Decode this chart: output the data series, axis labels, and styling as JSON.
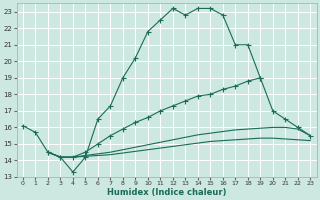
{
  "xlabel": "Humidex (Indice chaleur)",
  "bg_color": "#cce8e0",
  "grid_color": "#ffffff",
  "line_color": "#1a6b5a",
  "xlim": [
    -0.5,
    23.5
  ],
  "ylim": [
    13,
    23.5
  ],
  "yticks": [
    13,
    14,
    15,
    16,
    17,
    18,
    19,
    20,
    21,
    22,
    23
  ],
  "xticks": [
    0,
    1,
    2,
    3,
    4,
    5,
    6,
    7,
    8,
    9,
    10,
    11,
    12,
    13,
    14,
    15,
    16,
    17,
    18,
    19,
    20,
    21,
    22,
    23
  ],
  "line1_x": [
    0,
    1,
    2,
    3,
    4,
    5,
    6,
    7,
    8,
    9,
    10,
    11,
    12,
    13,
    14,
    15,
    16,
    17,
    18,
    19
  ],
  "line1_y": [
    16.1,
    15.7,
    14.5,
    14.2,
    13.3,
    14.2,
    16.5,
    17.3,
    19.0,
    20.2,
    21.8,
    22.5,
    23.2,
    22.8,
    23.2,
    23.2,
    22.8,
    21.0,
    21.0,
    19.0
  ],
  "line2_x": [
    2,
    3,
    4,
    5,
    6,
    7,
    8,
    9,
    10,
    11,
    12,
    13,
    14,
    15,
    16,
    17,
    18,
    19,
    20,
    21,
    22,
    23
  ],
  "line2_y": [
    14.5,
    14.2,
    14.2,
    14.5,
    15.0,
    15.5,
    15.9,
    16.3,
    16.6,
    17.0,
    17.3,
    17.6,
    17.9,
    18.0,
    18.3,
    18.5,
    18.8,
    19.0,
    17.0,
    16.5,
    16.0,
    15.5
  ],
  "line3_x": [
    2,
    3,
    4,
    5,
    6,
    7,
    8,
    9,
    10,
    11,
    12,
    13,
    14,
    15,
    16,
    17,
    18,
    19,
    20,
    21,
    22,
    23
  ],
  "line3_y": [
    14.5,
    14.2,
    14.2,
    14.3,
    14.4,
    14.5,
    14.65,
    14.8,
    14.95,
    15.1,
    15.25,
    15.4,
    15.55,
    15.65,
    15.75,
    15.85,
    15.9,
    15.95,
    16.0,
    16.0,
    15.9,
    15.5
  ],
  "line4_x": [
    2,
    3,
    4,
    5,
    6,
    7,
    8,
    9,
    10,
    11,
    12,
    13,
    14,
    15,
    16,
    17,
    18,
    19,
    20,
    21,
    22,
    23
  ],
  "line4_y": [
    14.5,
    14.2,
    14.2,
    14.25,
    14.3,
    14.35,
    14.45,
    14.55,
    14.65,
    14.75,
    14.85,
    14.95,
    15.05,
    15.15,
    15.2,
    15.25,
    15.3,
    15.35,
    15.35,
    15.3,
    15.25,
    15.2
  ]
}
